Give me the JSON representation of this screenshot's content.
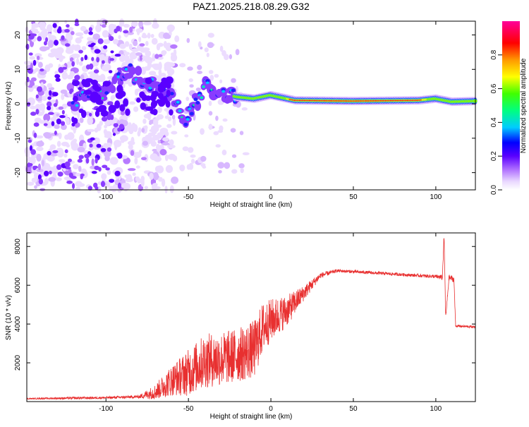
{
  "title": "PAZ1.2025.218.08.29.G32",
  "chart_data": [
    {
      "type": "heatmap",
      "title": "PAZ1.2025.218.08.29.G32",
      "xlabel": "Height of straight line (km)",
      "ylabel": "Frequency (Hz)",
      "xlim": [
        -148,
        124
      ],
      "ylim": [
        -25,
        24
      ],
      "xticks": [
        -100,
        -50,
        0,
        50,
        100
      ],
      "xtick_labels": [
        "-100",
        "-50",
        "0",
        "50",
        "100"
      ],
      "yticks": [
        -20,
        -10,
        0,
        10,
        20
      ],
      "ytick_labels": [
        "-20",
        "-10",
        "0",
        "10",
        "20"
      ],
      "colorbar": {
        "label": "Normalized spectral amplitude",
        "range": [
          0,
          1
        ],
        "ticks": [
          0.0,
          0.2,
          0.4,
          0.6,
          0.8
        ],
        "tick_labels": [
          "0.0",
          "0.2",
          "0.4",
          "0.6",
          "0.8"
        ]
      },
      "ridge": {
        "description_points": [
          {
            "x": -115,
            "y": 4
          },
          {
            "x": -100,
            "y": 3
          },
          {
            "x": -88,
            "y": 10
          },
          {
            "x": -75,
            "y": 6
          },
          {
            "x": -60,
            "y": 2
          },
          {
            "x": -52,
            "y": -5
          },
          {
            "x": -40,
            "y": 5
          },
          {
            "x": -30,
            "y": 3
          },
          {
            "x": -20,
            "y": 2
          },
          {
            "x": -10,
            "y": 1.5
          },
          {
            "x": 0,
            "y": 2.5
          },
          {
            "x": 15,
            "y": 1
          },
          {
            "x": 50,
            "y": 0.8
          },
          {
            "x": 90,
            "y": 1
          },
          {
            "x": 100,
            "y": 1.5
          },
          {
            "x": 110,
            "y": 0.6
          },
          {
            "x": 124,
            "y": 0.8
          }
        ]
      },
      "grid": false
    },
    {
      "type": "line",
      "xlabel": "Height of straight line (km)",
      "ylabel": "SNR (10 * v/v)",
      "xlim": [
        -148,
        124
      ],
      "ylim": [
        0,
        8700
      ],
      "xticks": [
        -100,
        -50,
        0,
        50,
        100
      ],
      "xtick_labels": [
        "-100",
        "-50",
        "0",
        "50",
        "100"
      ],
      "yticks": [
        2000,
        4000,
        6000,
        8000
      ],
      "ytick_labels": [
        "2000",
        "4000",
        "6000",
        "8000"
      ],
      "color": "#e83030",
      "series": [
        {
          "x": [
            -148,
            -120,
            -100,
            -80,
            -70,
            -60,
            -50,
            -40,
            -30,
            -20,
            -10,
            -5,
            0,
            10,
            20,
            30,
            40,
            50,
            60,
            70,
            80,
            90,
            100,
            104,
            105,
            106,
            108,
            111,
            112,
            124
          ],
          "values": [
            150,
            180,
            200,
            250,
            500,
            1100,
            1500,
            2100,
            2200,
            2400,
            2700,
            3800,
            4200,
            4700,
            5600,
            6500,
            6750,
            6700,
            6650,
            6600,
            6550,
            6500,
            6450,
            6400,
            8600,
            4300,
            6400,
            6300,
            3900,
            3850
          ],
          "noise": [
            30,
            60,
            60,
            80,
            400,
            800,
            1200,
            1400,
            1400,
            1400,
            1500,
            1300,
            1100,
            800,
            400,
            150,
            80,
            80,
            80,
            80,
            80,
            80,
            100,
            150,
            150,
            150,
            150,
            150,
            60,
            60
          ]
        }
      ],
      "grid": false
    }
  ]
}
